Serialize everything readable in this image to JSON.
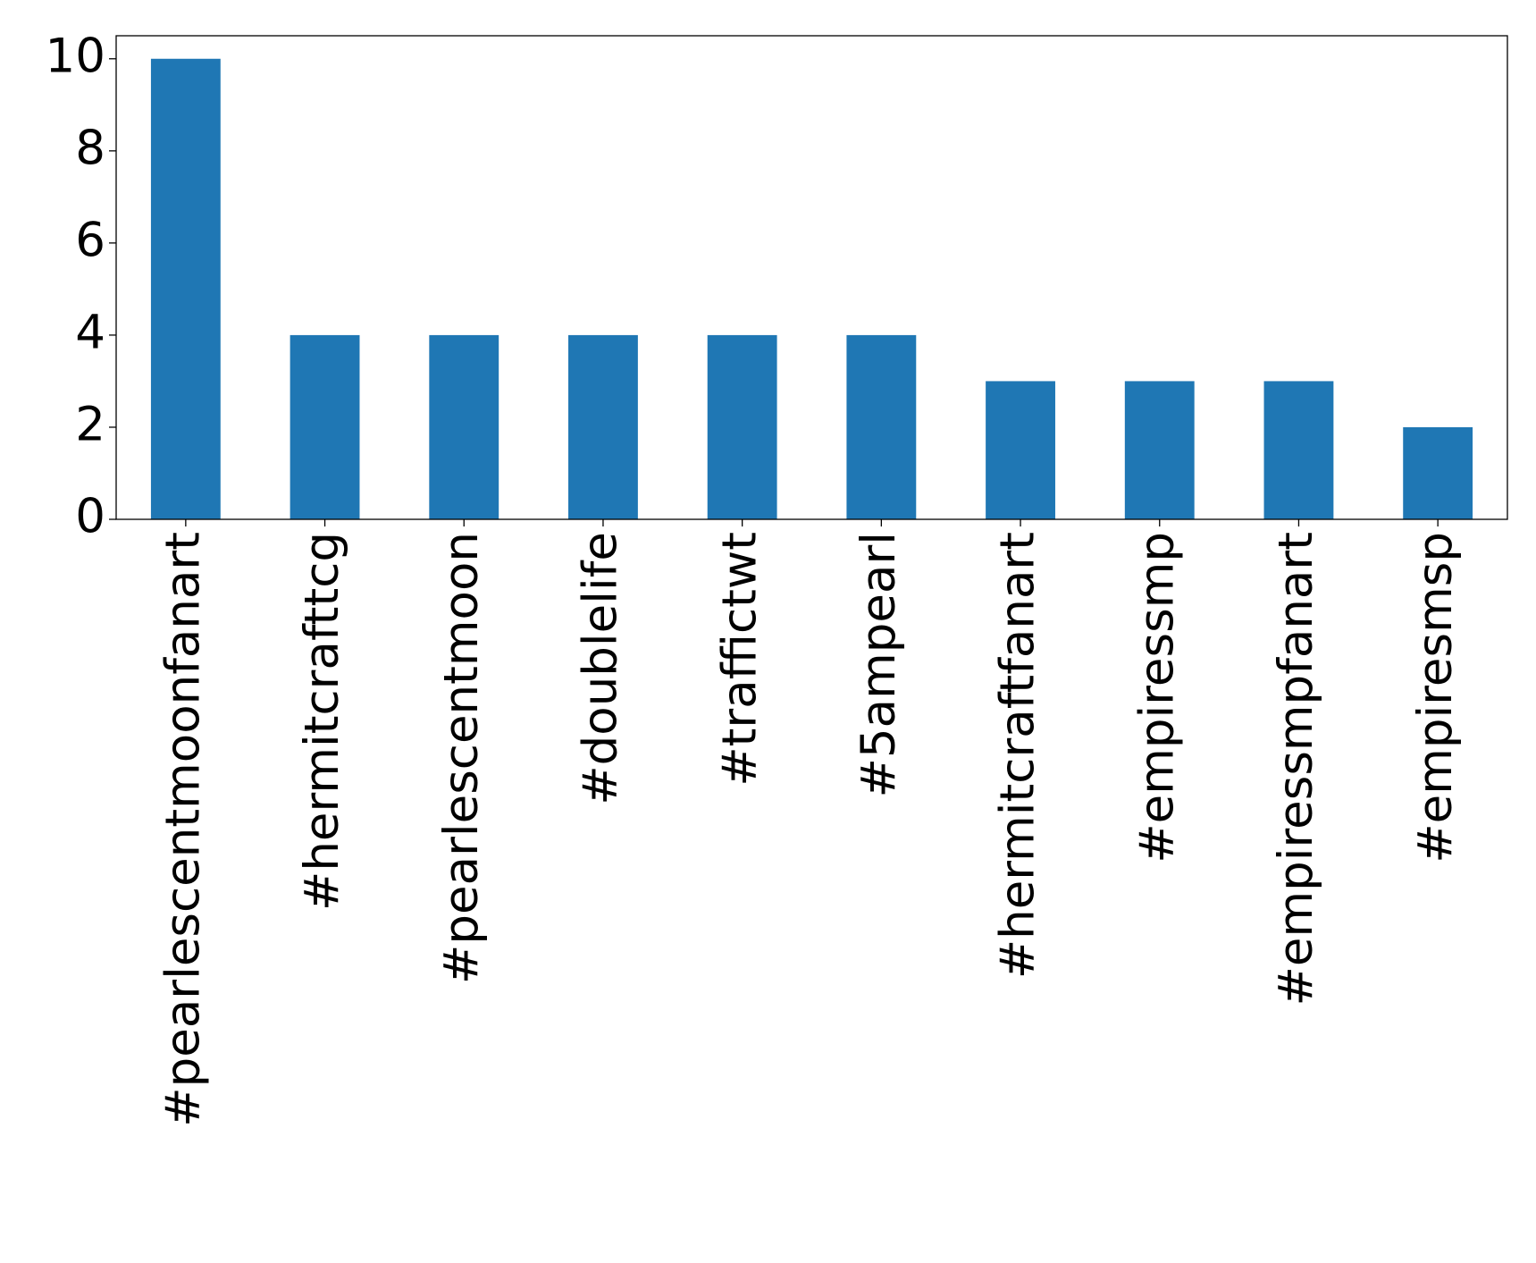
{
  "chart_data": {
    "type": "bar",
    "categories": [
      "#pearlescentmoonfanart",
      "#hermitcrafttcg",
      "#pearlescentmoon",
      "#doublelife",
      "#traffictwt",
      "#5ampearl",
      "#hermitcraftfanart",
      "#empiressmp",
      "#empiressmpfanart",
      "#empiresmsp"
    ],
    "values": [
      10,
      4,
      4,
      4,
      4,
      4,
      3,
      3,
      3,
      2
    ],
    "color": "#1f77b4",
    "ylim": [
      0,
      10.5
    ],
    "yticks": [
      0,
      2,
      4,
      6,
      8,
      10
    ],
    "grid": false
  }
}
